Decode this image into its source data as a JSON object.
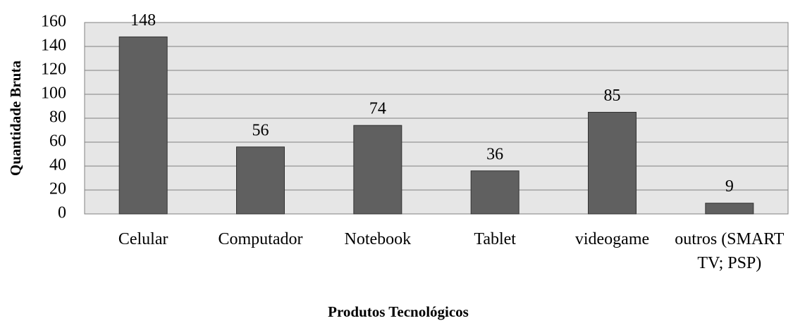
{
  "chart_data": {
    "type": "bar",
    "categories": [
      "Celular",
      "Computador",
      "Notebook",
      "Tablet",
      "videogame",
      "outros (SMART TV; PSP)"
    ],
    "values": [
      148,
      56,
      74,
      36,
      85,
      9
    ],
    "color": "#606060",
    "xlabel": "Produtos Tecnológicos",
    "ylabel": "Quantidade Bruta",
    "ylim": [
      0,
      160
    ],
    "yticks": [
      0,
      20,
      40,
      60,
      80,
      100,
      120,
      140,
      160
    ],
    "grid": true
  }
}
